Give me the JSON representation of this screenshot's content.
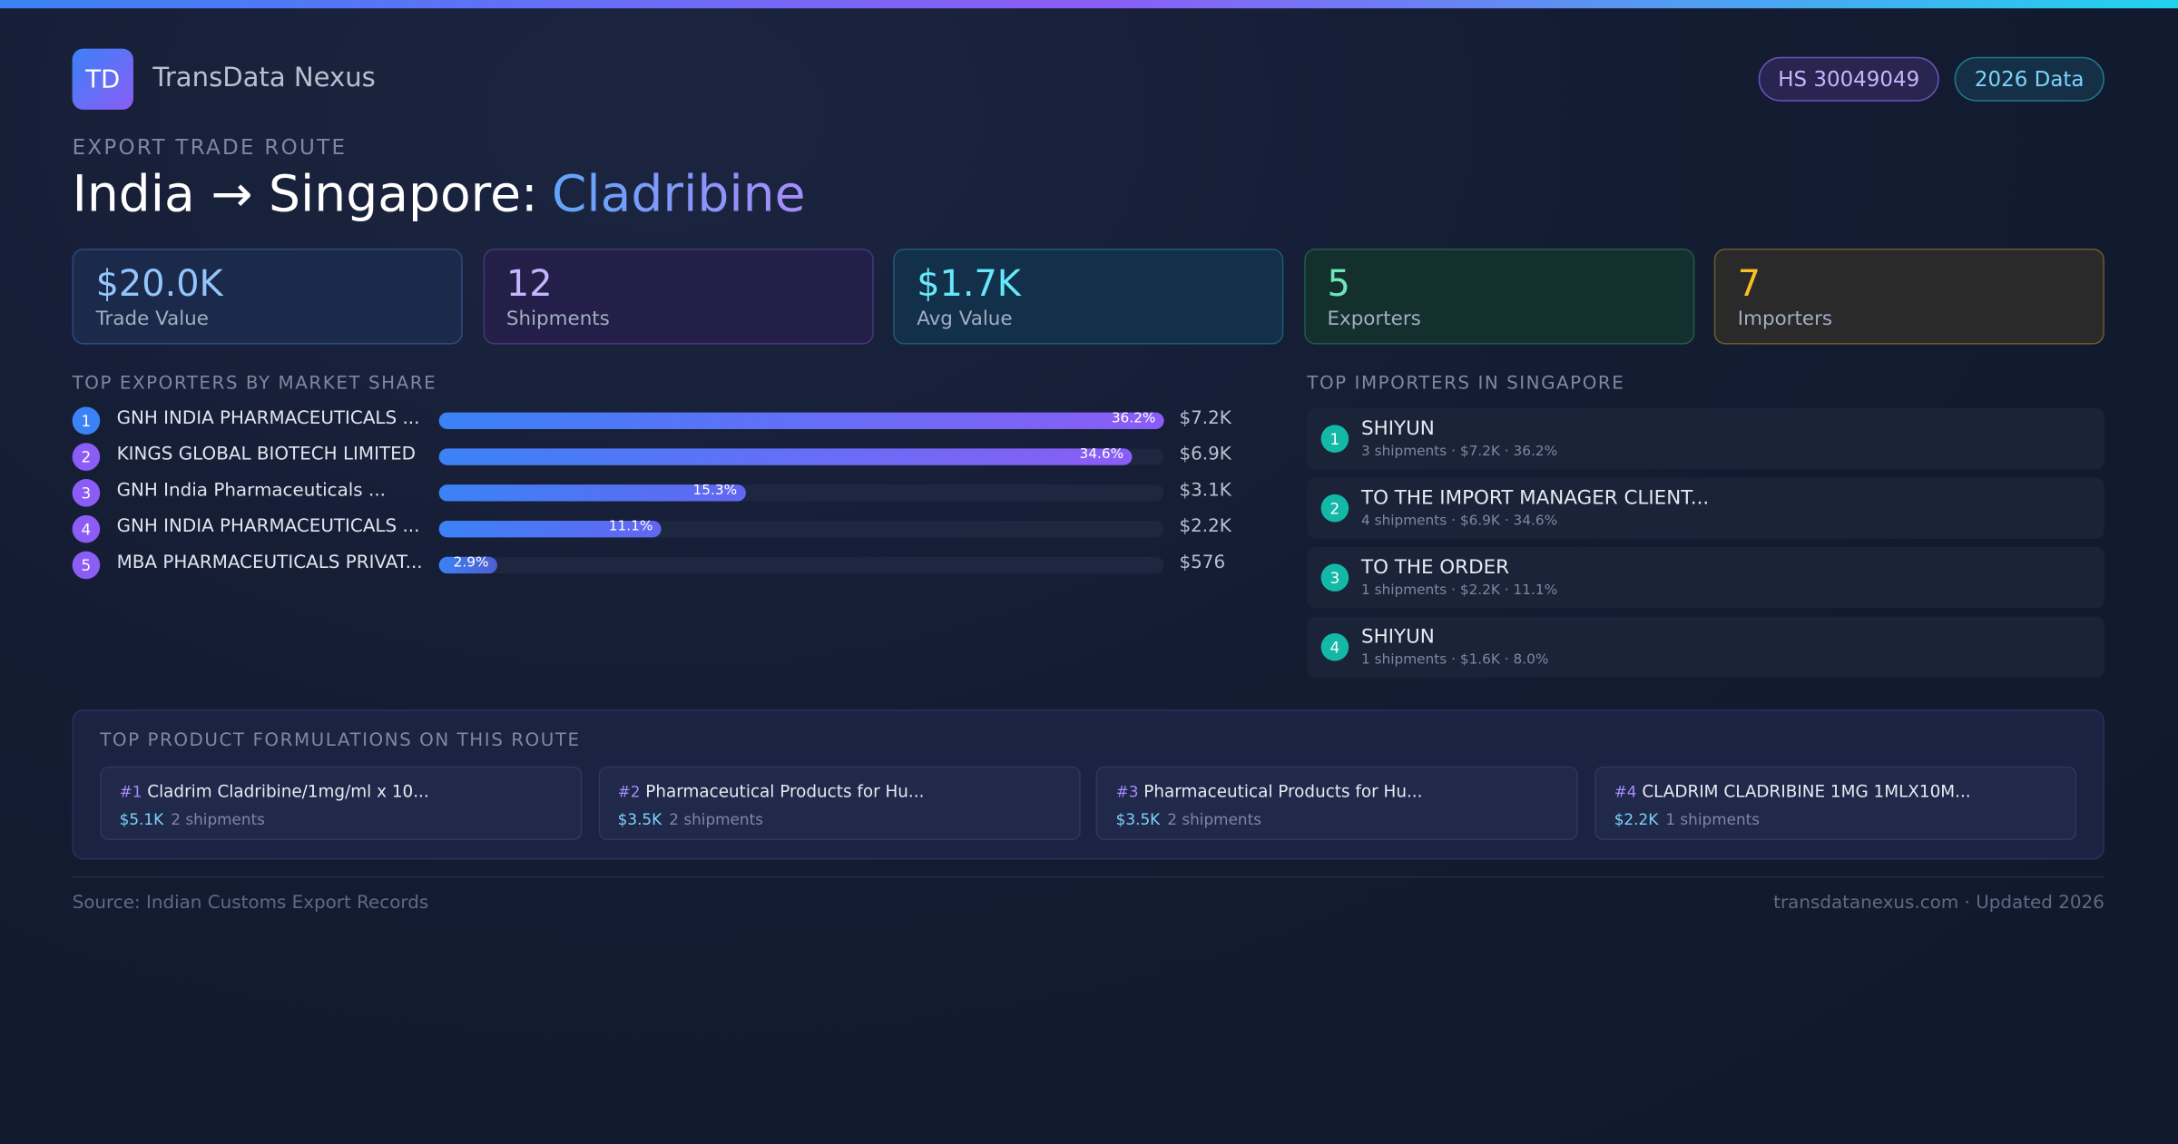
{
  "header": {
    "logo": "TD",
    "brand": "TransData Nexus",
    "badges": [
      "HS 30049049",
      "2026 Data"
    ]
  },
  "route": {
    "eyebrow": "EXPORT TRADE ROUTE",
    "title": "India → Singapore:",
    "product": "Cladribine"
  },
  "kpis": [
    {
      "value": "$20.0K",
      "label": "Trade Value"
    },
    {
      "value": "12",
      "label": "Shipments"
    },
    {
      "value": "$1.7K",
      "label": "Avg Value"
    },
    {
      "value": "5",
      "label": "Exporters"
    },
    {
      "value": "7",
      "label": "Importers"
    }
  ],
  "exporters": {
    "title": "TOP EXPORTERS BY MARKET SHARE",
    "ranks": [
      1,
      2,
      3,
      4,
      5
    ],
    "names": [
      "GNH INDIA PHARMACEUTICALS ...",
      "KINGS GLOBAL BIOTECH LIMITED",
      "GNH India Pharmaceuticals ...",
      "GNH INDIA PHARMACEUTICALS ...",
      "MBA PHARMACEUTICALS PRIVAT..."
    ],
    "shares": [
      36.2,
      34.6,
      15.3,
      11.1,
      2.9
    ],
    "share_labels": [
      "36.2%",
      "34.6%",
      "15.3%",
      "11.1%",
      "2.9%"
    ],
    "values": [
      "$7.2K",
      "$6.9K",
      "$3.1K",
      "$2.2K",
      "$576"
    ]
  },
  "importers": {
    "title": "TOP IMPORTERS IN SINGAPORE",
    "items": [
      {
        "rank": 1,
        "name": "SHIYUN",
        "detail": "3 shipments · $7.2K · 36.2%"
      },
      {
        "rank": 2,
        "name": "TO THE IMPORT MANAGER CLIENT...",
        "detail": "4 shipments · $6.9K · 34.6%"
      },
      {
        "rank": 3,
        "name": "TO THE ORDER",
        "detail": "1 shipments · $2.2K · 11.1%"
      },
      {
        "rank": 4,
        "name": "SHIYUN",
        "detail": "1 shipments · $1.6K · 8.0%"
      }
    ]
  },
  "formulations": {
    "title": "TOP PRODUCT FORMULATIONS ON THIS ROUTE",
    "items": [
      {
        "rank": "#1",
        "name": "Cladrim Cladribine/1mg/ml x 10...",
        "value": "$5.1K",
        "shipments": "2 shipments"
      },
      {
        "rank": "#2",
        "name": "Pharmaceutical Products for Hu...",
        "value": "$3.5K",
        "shipments": "2 shipments"
      },
      {
        "rank": "#3",
        "name": "Pharmaceutical Products for Hu...",
        "value": "$3.5K",
        "shipments": "2 shipments"
      },
      {
        "rank": "#4",
        "name": "CLADRIM CLADRIBINE 1MG 1MLX10M...",
        "value": "$2.2K",
        "shipments": "1 shipments"
      }
    ]
  },
  "footer": {
    "source": "Source: Indian Customs Export Records",
    "site": "transdatanexus.com · Updated 2026"
  }
}
